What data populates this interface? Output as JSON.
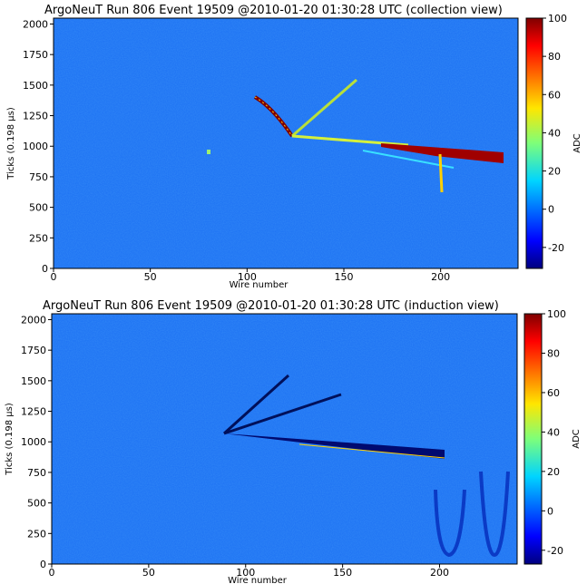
{
  "chart_data": [
    {
      "type": "heatmap",
      "title": "ArgoNeuT Run 806 Event 19509 @2010-01-20 01:30:28 UTC (collection view)",
      "xlabel": "Wire number",
      "ylabel": "Ticks (0.198 μs)",
      "colorbar_label": "ADC",
      "xlim": [
        0,
        240
      ],
      "xticks": [
        0,
        50,
        100,
        150,
        200
      ],
      "ylim": [
        0,
        2048
      ],
      "yticks": [
        0,
        250,
        500,
        750,
        1000,
        1250,
        1500,
        1750,
        2000
      ],
      "clim": [
        -31,
        100
      ],
      "cticks": [
        -20,
        0,
        20,
        40,
        60,
        80,
        100
      ],
      "colormap": "jet"
    },
    {
      "type": "heatmap",
      "title": "ArgoNeuT Run 806 Event 19509 @2010-01-20 01:30:28 UTC (induction view)",
      "xlabel": "Wire number",
      "ylabel": "Ticks (0.198 μs)",
      "colorbar_label": "ADC",
      "xlim": [
        0,
        240
      ],
      "xticks": [
        0,
        50,
        100,
        150,
        200
      ],
      "ylim": [
        0,
        2048
      ],
      "yticks": [
        0,
        250,
        500,
        750,
        1000,
        1250,
        1500,
        1750,
        2000
      ],
      "clim": [
        -27,
        100
      ],
      "cticks": [
        -20,
        0,
        20,
        40,
        60,
        80,
        100
      ],
      "colormap": "jet"
    }
  ]
}
